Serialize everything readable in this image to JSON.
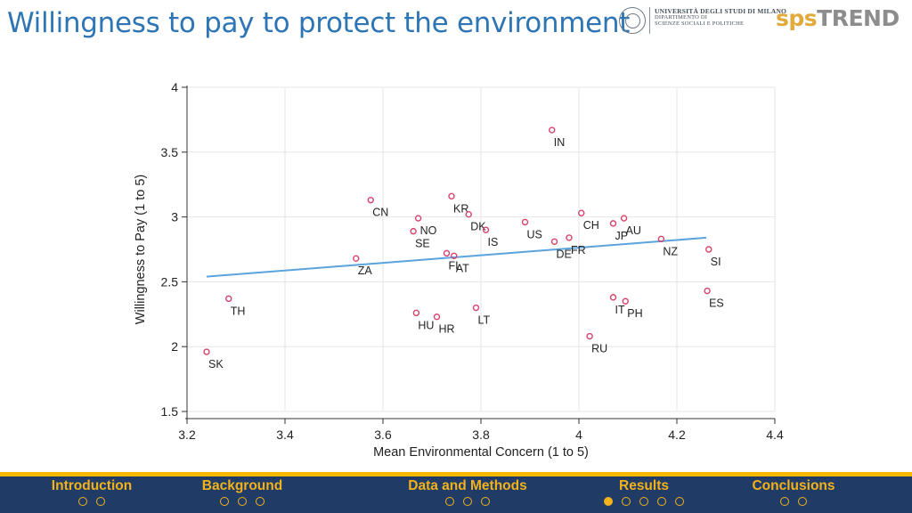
{
  "slide": {
    "title": "Willingness to pay to protect the environment",
    "university": {
      "line1": "UNIVERSITÀ DEGLI STUDI DI MILANO",
      "line2": "DIPARTIMENTO DI",
      "line3": "SCIENZE SOCIALI E POLITICHE"
    },
    "brand": {
      "part1": "sps",
      "part2": "TREND"
    }
  },
  "colors": {
    "title": "#2e75b6",
    "marker": "#d8436c",
    "fit_line": "#5ba3dc",
    "nav_bg": "#1f3b66",
    "nav_accent": "#f3b21a"
  },
  "chart_data": {
    "type": "scatter",
    "xlabel": "Mean Environmental Concern (1 to 5)",
    "ylabel": "Willingness to Pay (1 to 5)",
    "xlim": [
      3.2,
      4.4
    ],
    "ylim": [
      1.5,
      4
    ],
    "xticks": [
      "3.2",
      "3.4",
      "3.6",
      "3.8",
      "4",
      "4.2",
      "4.4"
    ],
    "yticks": [
      "1.5",
      "2",
      "2.5",
      "3",
      "3.5",
      "4"
    ],
    "grid": true,
    "fit_line": {
      "x": [
        3.24,
        4.26
      ],
      "y": [
        2.54,
        2.84
      ]
    },
    "points": [
      {
        "label": "SK",
        "x": 3.24,
        "y": 1.96
      },
      {
        "label": "TH",
        "x": 3.285,
        "y": 2.37
      },
      {
        "label": "ZA",
        "x": 3.545,
        "y": 2.68
      },
      {
        "label": "CN",
        "x": 3.575,
        "y": 3.13
      },
      {
        "label": "NO",
        "x": 3.672,
        "y": 2.99
      },
      {
        "label": "SE",
        "x": 3.662,
        "y": 2.89
      },
      {
        "label": "HU",
        "x": 3.668,
        "y": 2.26
      },
      {
        "label": "HR",
        "x": 3.71,
        "y": 2.23
      },
      {
        "label": "FI",
        "x": 3.73,
        "y": 2.72
      },
      {
        "label": "AT",
        "x": 3.745,
        "y": 2.7
      },
      {
        "label": "KR",
        "x": 3.74,
        "y": 3.16
      },
      {
        "label": "DK",
        "x": 3.775,
        "y": 3.02
      },
      {
        "label": "IS",
        "x": 3.81,
        "y": 2.9
      },
      {
        "label": "LT",
        "x": 3.79,
        "y": 2.3
      },
      {
        "label": "US",
        "x": 3.89,
        "y": 2.96
      },
      {
        "label": "IN",
        "x": 3.945,
        "y": 3.67
      },
      {
        "label": "DE",
        "x": 3.95,
        "y": 2.81
      },
      {
        "label": "FR",
        "x": 3.98,
        "y": 2.84
      },
      {
        "label": "CH",
        "x": 4.005,
        "y": 3.03
      },
      {
        "label": "RU",
        "x": 4.022,
        "y": 2.08
      },
      {
        "label": "JP",
        "x": 4.07,
        "y": 2.95
      },
      {
        "label": "AU",
        "x": 4.092,
        "y": 2.99
      },
      {
        "label": "IT",
        "x": 4.07,
        "y": 2.38
      },
      {
        "label": "PH",
        "x": 4.095,
        "y": 2.35
      },
      {
        "label": "NZ",
        "x": 4.168,
        "y": 2.83
      },
      {
        "label": "SI",
        "x": 4.265,
        "y": 2.75
      },
      {
        "label": "ES",
        "x": 4.262,
        "y": 2.43
      }
    ]
  },
  "nav": [
    {
      "label": "Introduction",
      "dots": [
        false,
        false
      ]
    },
    {
      "label": "Background",
      "dots": [
        false,
        false,
        false
      ]
    },
    {
      "label": "Data and Methods",
      "dots": [
        false,
        false,
        false
      ]
    },
    {
      "label": "Results",
      "dots": [
        true,
        false,
        false,
        false,
        false
      ]
    },
    {
      "label": "Conclusions",
      "dots": [
        false,
        false
      ]
    }
  ]
}
